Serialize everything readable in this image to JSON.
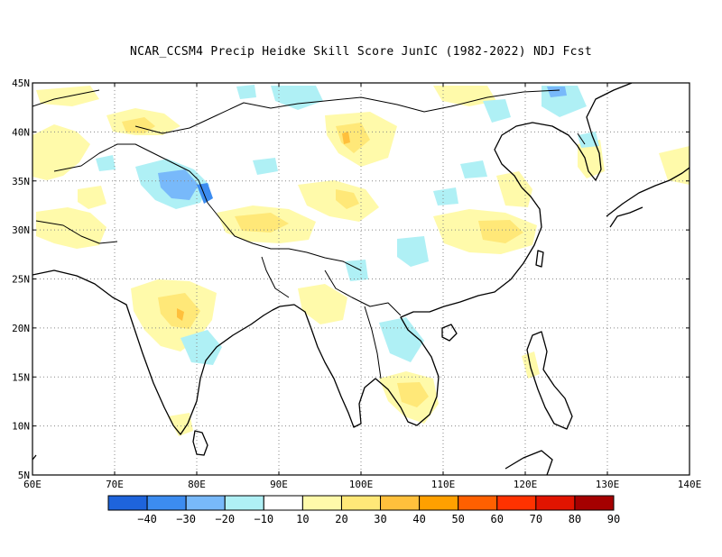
{
  "title": "NCAR_CCSM4 Precip Heidke Skill Score JunIC (1982-2022) NDJ Fcst",
  "map": {
    "lon_labels": [
      "60E",
      "70E",
      "80E",
      "90E",
      "100E",
      "110E",
      "120E",
      "130E",
      "140E"
    ],
    "lat_labels": [
      "45N",
      "40N",
      "35N",
      "30N",
      "25N",
      "20N",
      "15N",
      "10N",
      "5N"
    ],
    "grid": true
  },
  "colorbar": {
    "labels": [
      "-40",
      "-30",
      "-20",
      "-10",
      "10",
      "20",
      "30",
      "40",
      "50",
      "60",
      "70",
      "80",
      "90"
    ],
    "colors": [
      "#1e64dc",
      "#3c8cf0",
      "#78b9fa",
      "#aff0f5",
      "#ffffff",
      "#fffaaa",
      "#ffe878",
      "#ffc03c",
      "#ffa000",
      "#ff6000",
      "#ff3200",
      "#e11400",
      "#a50000"
    ]
  },
  "colors": {
    "neg_strong": "#3c8cf0",
    "neg_mid": "#78b9fa",
    "neg_weak": "#aff0f5",
    "pos_weak": "#fffaaa",
    "pos_mid": "#ffe878",
    "pos_strong": "#ffc03c"
  }
}
